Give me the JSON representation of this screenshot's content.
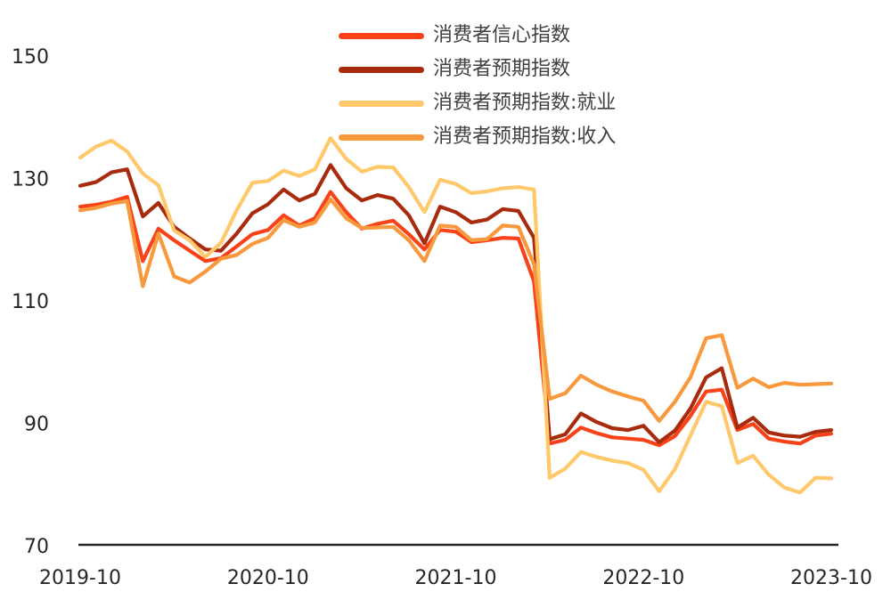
{
  "chart_data": {
    "type": "line",
    "title": "",
    "xlabel": "",
    "ylabel": "",
    "grid": false,
    "legend_position": "top-center",
    "ylim": [
      70,
      155
    ],
    "yticks": [
      70,
      90,
      110,
      130,
      150
    ],
    "xticks": [
      "2019-10",
      "2020-10",
      "2021-10",
      "2022-10",
      "2023-10"
    ],
    "x": [
      "2019-10",
      "2019-11",
      "2019-12",
      "2020-01",
      "2020-02",
      "2020-03",
      "2020-04",
      "2020-05",
      "2020-06",
      "2020-07",
      "2020-08",
      "2020-09",
      "2020-10",
      "2020-11",
      "2020-12",
      "2021-01",
      "2021-02",
      "2021-03",
      "2021-04",
      "2021-05",
      "2021-06",
      "2021-07",
      "2021-08",
      "2021-09",
      "2021-10",
      "2021-11",
      "2021-12",
      "2022-01",
      "2022-02",
      "2022-03",
      "2022-04",
      "2022-05",
      "2022-06",
      "2022-07",
      "2022-08",
      "2022-09",
      "2022-10",
      "2022-11",
      "2022-12",
      "2023-01",
      "2023-02",
      "2023-03",
      "2023-04",
      "2023-05",
      "2023-06",
      "2023-07",
      "2023-08",
      "2023-09",
      "2023-10"
    ],
    "series": [
      {
        "name": "消费者信心指数",
        "color": "#F8431A",
        "values": [
          125.4,
          125.7,
          126.2,
          127.0,
          116.5,
          121.8,
          119.9,
          118.2,
          116.5,
          117.0,
          118.9,
          120.9,
          121.6,
          124.0,
          122.3,
          123.5,
          127.8,
          124.5,
          121.8,
          122.6,
          123.1,
          120.9,
          118.4,
          121.6,
          121.3,
          119.6,
          119.9,
          120.3,
          120.2,
          113.2,
          86.7,
          87.3,
          89.3,
          88.4,
          87.7,
          87.5,
          87.3,
          86.4,
          87.9,
          91.2,
          95.2,
          95.5,
          88.9,
          89.9,
          87.5,
          87.0,
          86.7,
          88.0,
          88.3
        ]
      },
      {
        "name": "消费者预期指数",
        "color": "#A82B0E",
        "values": [
          128.8,
          129.4,
          131.0,
          131.5,
          123.8,
          126.0,
          122.1,
          120.2,
          118.4,
          118.2,
          121.0,
          124.3,
          125.8,
          128.2,
          126.4,
          127.5,
          132.2,
          128.4,
          126.4,
          127.3,
          126.7,
          124.0,
          119.4,
          125.4,
          124.5,
          122.8,
          123.3,
          125.0,
          124.7,
          120.3,
          87.4,
          88.2,
          91.6,
          90.2,
          89.2,
          88.9,
          89.6,
          86.9,
          88.8,
          92.4,
          97.5,
          99.0,
          89.3,
          90.9,
          88.5,
          88.0,
          87.8,
          88.6,
          88.9
        ]
      },
      {
        "name": "消费者预期指数:就业",
        "color": "#FFC96B",
        "values": [
          133.4,
          135.2,
          136.2,
          134.4,
          130.8,
          128.9,
          121.5,
          119.9,
          117.2,
          119.5,
          124.8,
          129.3,
          129.6,
          131.3,
          130.4,
          131.5,
          136.6,
          133.2,
          131.1,
          131.9,
          131.8,
          128.6,
          124.5,
          129.8,
          129.1,
          127.6,
          127.9,
          128.4,
          128.6,
          128.2,
          81.1,
          82.6,
          85.3,
          84.5,
          83.9,
          83.5,
          82.4,
          78.9,
          82.5,
          88.0,
          93.5,
          92.8,
          83.5,
          84.7,
          81.6,
          79.5,
          78.7,
          81.1,
          81.0
        ]
      },
      {
        "name": "消费者预期指数:收入",
        "color": "#F8993D",
        "values": [
          124.8,
          125.2,
          125.9,
          126.3,
          112.4,
          121.0,
          114.0,
          113.0,
          114.8,
          116.9,
          117.5,
          119.3,
          120.3,
          123.2,
          122.1,
          122.8,
          126.6,
          123.5,
          121.9,
          122.0,
          122.1,
          119.9,
          116.5,
          122.3,
          122.1,
          119.9,
          120.1,
          122.3,
          122.1,
          116.0,
          94.0,
          94.9,
          97.8,
          96.3,
          95.2,
          94.4,
          93.7,
          90.4,
          93.5,
          97.5,
          103.9,
          104.4,
          95.8,
          97.3,
          95.9,
          96.6,
          96.3,
          96.4,
          96.5
        ]
      }
    ]
  },
  "axis": {
    "tick_color": "#262626",
    "axis_line_color": "#262626"
  }
}
